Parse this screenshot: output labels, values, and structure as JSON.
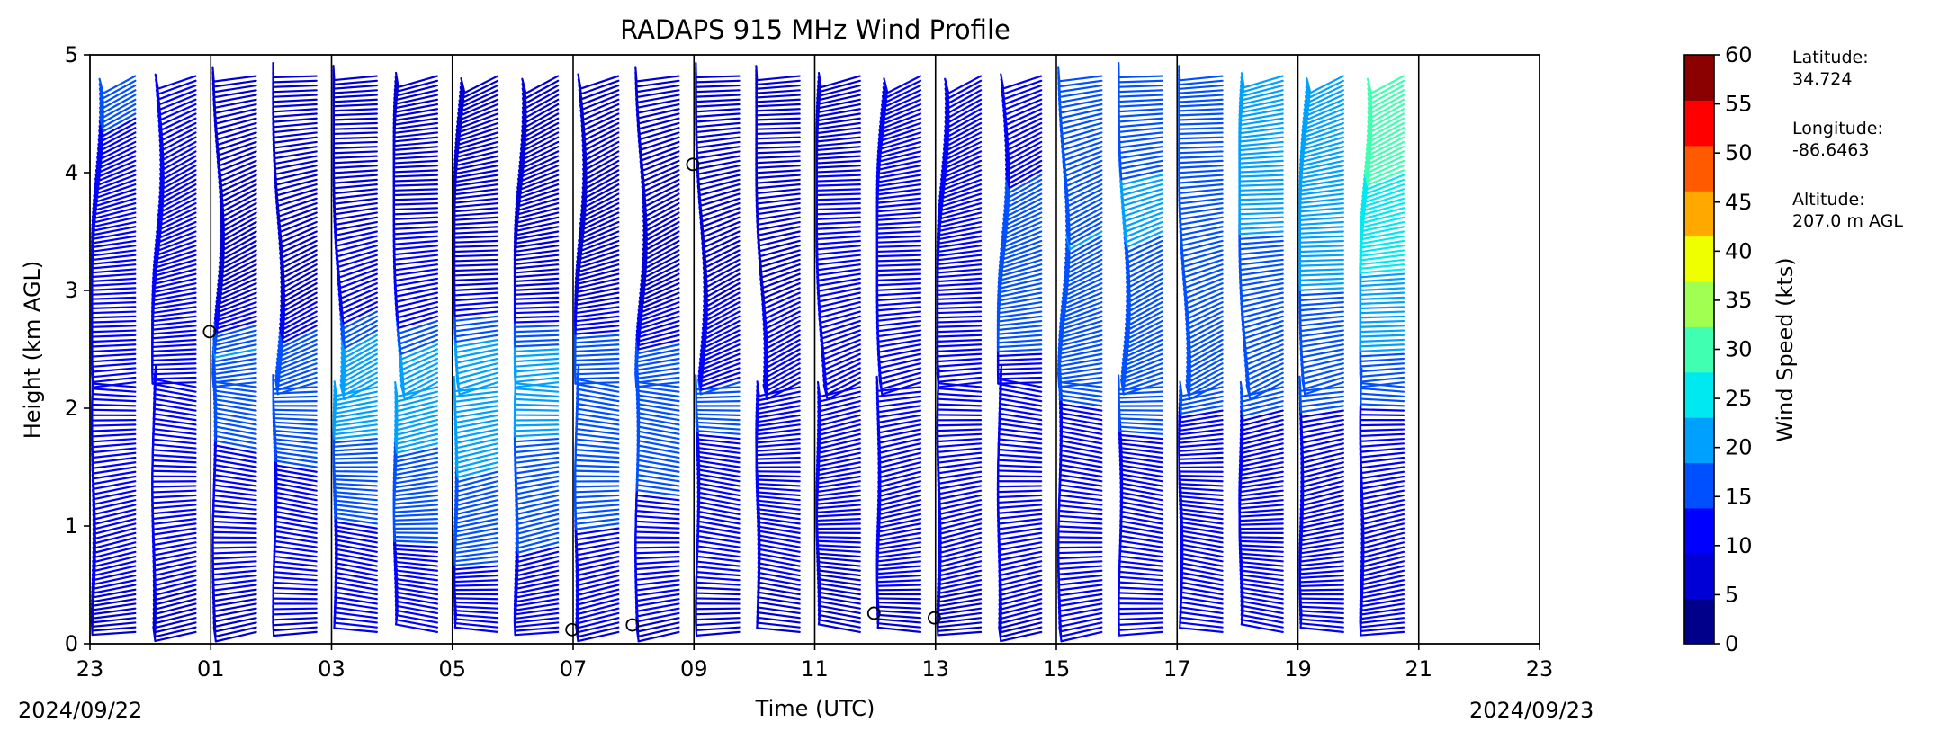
{
  "chart_data": {
    "type": "wind-barb-profile",
    "title": "RADAPS 915 MHz Wind Profile",
    "xlabel": "Time (UTC)",
    "ylabel": "Height (km AGL)",
    "xlim_hours": [
      0,
      24
    ],
    "ylim": [
      0,
      5
    ],
    "x_tick_labels": [
      "23",
      "01",
      "03",
      "05",
      "07",
      "09",
      "11",
      "13",
      "15",
      "17",
      "19",
      "21",
      "23"
    ],
    "y_tick_labels": [
      "0",
      "1",
      "2",
      "3",
      "4",
      "5"
    ],
    "start_date_label": "2024/09/22",
    "end_date_label": "2024/09/23",
    "hourly_divider_hours": [
      0,
      2,
      4,
      6,
      8,
      10,
      12,
      14,
      16,
      18,
      20,
      22,
      24
    ],
    "colorbar": {
      "label": "Wind Speed (kts)",
      "ticks": [
        "0",
        "5",
        "10",
        "15",
        "20",
        "25",
        "30",
        "35",
        "40",
        "45",
        "50",
        "55",
        "60"
      ],
      "colors": [
        "#00008b",
        "#0000d6",
        "#0000ff",
        "#0050ff",
        "#00a0ff",
        "#00e8f0",
        "#40ffb0",
        "#a0ff50",
        "#f0ff00",
        "#ffa800",
        "#ff5a00",
        "#ff0000",
        "#8b0000"
      ]
    },
    "site_info": [
      {
        "label": "Latitude:",
        "value": "34.724"
      },
      {
        "label": "Longitude:",
        "value": "-86.6463"
      },
      {
        "label": "Altitude:",
        "value": "207.0 m AGL"
      }
    ],
    "profiles": [
      {
        "hour": 0.75,
        "speed": [
          9,
          10,
          12,
          13,
          12,
          11,
          12,
          13,
          14,
          15
        ]
      },
      {
        "hour": 1.75,
        "speed": [
          9,
          10,
          11,
          12,
          12,
          11,
          10,
          11,
          12,
          13
        ]
      },
      {
        "hour": 2.75,
        "speed": [
          9,
          10,
          12,
          14,
          18,
          20,
          8,
          7,
          6,
          6
        ]
      },
      {
        "hour": 3.75,
        "speed": [
          9,
          11,
          13,
          15,
          17,
          19,
          8,
          8,
          7,
          7
        ]
      },
      {
        "hour": 4.75,
        "speed": [
          10,
          12,
          15,
          18,
          22,
          24,
          10,
          10,
          9,
          9
        ]
      },
      {
        "hour": 5.75,
        "speed": [
          10,
          13,
          16,
          19,
          22,
          21,
          10,
          10,
          9,
          8
        ]
      },
      {
        "hour": 6.75,
        "speed": [
          11,
          14,
          17,
          20,
          22,
          22,
          10,
          8,
          7,
          6
        ]
      },
      {
        "hour": 7.75,
        "speed": [
          10,
          13,
          16,
          19,
          21,
          20,
          9,
          8,
          7,
          6
        ]
      },
      {
        "hour": 8.75,
        "speed": [
          9,
          12,
          15,
          17,
          19,
          18,
          8,
          7,
          6,
          6
        ]
      },
      {
        "hour": 9.75,
        "speed": [
          9,
          11,
          14,
          16,
          18,
          16,
          9,
          8,
          7,
          7
        ]
      },
      {
        "hour": 10.75,
        "speed": [
          8,
          10,
          12,
          14,
          16,
          14,
          10,
          9,
          8,
          8
        ]
      },
      {
        "hour": 11.75,
        "speed": [
          8,
          10,
          11,
          12,
          12,
          11,
          10,
          9,
          9,
          8
        ]
      },
      {
        "hour": 12.75,
        "speed": [
          8,
          9,
          11,
          12,
          13,
          12,
          11,
          10,
          10,
          9
        ]
      },
      {
        "hour": 13.75,
        "speed": [
          9,
          10,
          11,
          12,
          13,
          13,
          12,
          11,
          10,
          10
        ]
      },
      {
        "hour": 14.75,
        "speed": [
          9,
          10,
          12,
          13,
          14,
          14,
          14,
          13,
          12,
          11
        ]
      },
      {
        "hour": 15.75,
        "speed": [
          9,
          11,
          12,
          13,
          14,
          15,
          16,
          16,
          15,
          14
        ]
      },
      {
        "hour": 16.75,
        "speed": [
          10,
          11,
          12,
          13,
          15,
          17,
          19,
          20,
          19,
          18
        ]
      },
      {
        "hour": 17.75,
        "speed": [
          11,
          12,
          13,
          14,
          16,
          18,
          19,
          20,
          20,
          19
        ]
      },
      {
        "hour": 18.75,
        "speed": [
          11,
          12,
          13,
          14,
          15,
          17,
          18,
          19,
          19,
          18
        ]
      },
      {
        "hour": 19.75,
        "speed": [
          11,
          12,
          13,
          14,
          15,
          17,
          18,
          20,
          21,
          20
        ]
      },
      {
        "hour": 20.75,
        "speed": [
          12,
          13,
          13,
          14,
          15,
          18,
          20,
          22,
          23,
          22
        ]
      },
      {
        "hour": 21.75,
        "speed": [
          12,
          13,
          14,
          14,
          15,
          20,
          24,
          27,
          30,
          34
        ]
      }
    ],
    "calm_markers": [
      {
        "hour": 1.98,
        "height": 2.65
      },
      {
        "hour": 7.98,
        "height": 0.12
      },
      {
        "hour": 8.98,
        "height": 0.16
      },
      {
        "hour": 9.98,
        "height": 4.07
      },
      {
        "hour": 12.98,
        "height": 0.26
      },
      {
        "hour": 13.98,
        "height": 0.22
      }
    ]
  }
}
